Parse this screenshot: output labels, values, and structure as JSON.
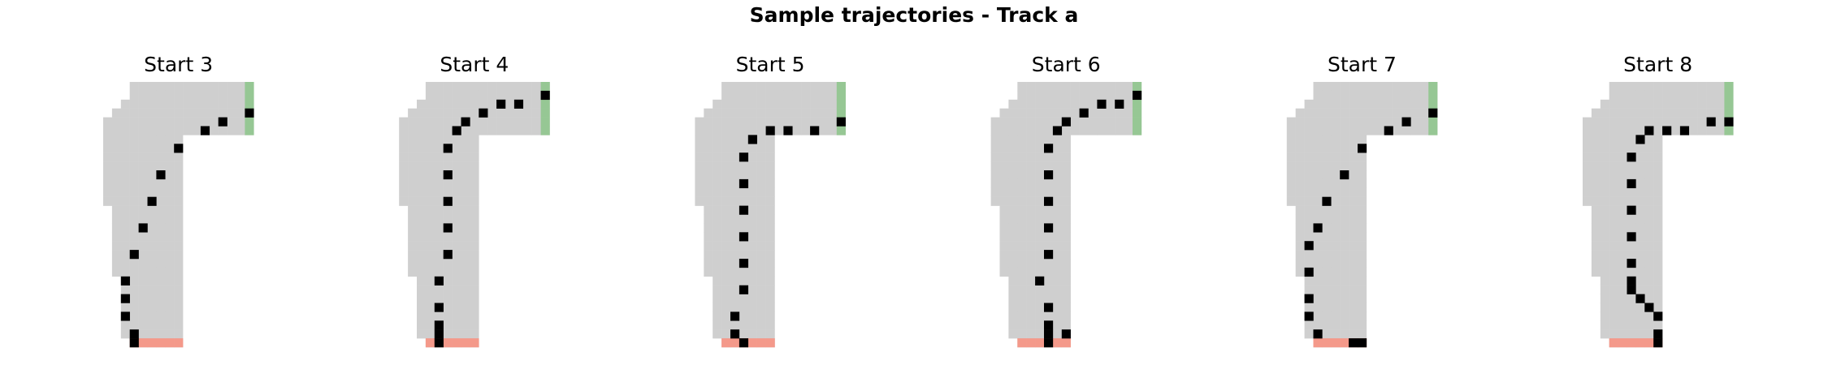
{
  "chart_data": {
    "type": "heatmap",
    "title": "Sample trajectories - Track a",
    "grid": false,
    "grid_size": {
      "rows": 30,
      "cols": 17
    },
    "colors": {
      "off_track": "#ffffff",
      "track": "#cfcfcf",
      "start_line": "#f4998a",
      "finish_line": "#96c794",
      "trajectory": "#000000"
    },
    "track_rows": [
      {
        "row": 0,
        "cols": [
          3,
          16
        ]
      },
      {
        "row": 1,
        "cols": [
          3,
          16
        ]
      },
      {
        "row": 2,
        "cols": [
          2,
          16
        ]
      },
      {
        "row": 3,
        "cols": [
          1,
          16
        ]
      },
      {
        "row": 4,
        "cols": [
          0,
          16
        ]
      },
      {
        "row": 5,
        "cols": [
          0,
          16
        ]
      },
      {
        "row": 6,
        "cols": [
          0,
          8
        ]
      },
      {
        "row": 7,
        "cols": [
          0,
          8
        ]
      },
      {
        "row": 8,
        "cols": [
          0,
          8
        ]
      },
      {
        "row": 9,
        "cols": [
          0,
          8
        ]
      },
      {
        "row": 10,
        "cols": [
          0,
          8
        ]
      },
      {
        "row": 11,
        "cols": [
          0,
          8
        ]
      },
      {
        "row": 12,
        "cols": [
          0,
          8
        ]
      },
      {
        "row": 13,
        "cols": [
          0,
          8
        ]
      },
      {
        "row": 14,
        "cols": [
          1,
          8
        ]
      },
      {
        "row": 15,
        "cols": [
          1,
          8
        ]
      },
      {
        "row": 16,
        "cols": [
          1,
          8
        ]
      },
      {
        "row": 17,
        "cols": [
          1,
          8
        ]
      },
      {
        "row": 18,
        "cols": [
          1,
          8
        ]
      },
      {
        "row": 19,
        "cols": [
          1,
          8
        ]
      },
      {
        "row": 20,
        "cols": [
          1,
          8
        ]
      },
      {
        "row": 21,
        "cols": [
          1,
          8
        ]
      },
      {
        "row": 22,
        "cols": [
          2,
          8
        ]
      },
      {
        "row": 23,
        "cols": [
          2,
          8
        ]
      },
      {
        "row": 24,
        "cols": [
          2,
          8
        ]
      },
      {
        "row": 25,
        "cols": [
          2,
          8
        ]
      },
      {
        "row": 26,
        "cols": [
          2,
          8
        ]
      },
      {
        "row": 27,
        "cols": [
          2,
          8
        ]
      },
      {
        "row": 28,
        "cols": [
          2,
          8
        ]
      },
      {
        "row": 29,
        "cols": [
          3,
          8
        ]
      }
    ],
    "start_cells": {
      "row": 29,
      "cols": [
        3,
        8
      ]
    },
    "finish_cells": {
      "col": 16,
      "rows": [
        0,
        5
      ]
    },
    "panels": [
      {
        "title": "Start 3",
        "trajectory": [
          [
            29,
            3
          ],
          [
            28,
            3
          ],
          [
            26,
            2
          ],
          [
            24,
            2
          ],
          [
            22,
            2
          ],
          [
            19,
            3
          ],
          [
            16,
            4
          ],
          [
            13,
            5
          ],
          [
            10,
            6
          ],
          [
            7,
            8
          ],
          [
            5,
            11
          ],
          [
            4,
            13
          ],
          [
            3,
            16
          ]
        ]
      },
      {
        "title": "Start 4",
        "trajectory": [
          [
            29,
            4
          ],
          [
            28,
            4
          ],
          [
            27,
            4
          ],
          [
            25,
            4
          ],
          [
            22,
            4
          ],
          [
            19,
            5
          ],
          [
            16,
            5
          ],
          [
            13,
            5
          ],
          [
            10,
            5
          ],
          [
            7,
            5
          ],
          [
            5,
            6
          ],
          [
            4,
            7
          ],
          [
            3,
            9
          ],
          [
            2,
            11
          ],
          [
            2,
            13
          ],
          [
            1,
            16
          ]
        ]
      },
      {
        "title": "Start 5",
        "trajectory": [
          [
            29,
            5
          ],
          [
            28,
            4
          ],
          [
            26,
            4
          ],
          [
            23,
            5
          ],
          [
            20,
            5
          ],
          [
            17,
            5
          ],
          [
            14,
            5
          ],
          [
            11,
            5
          ],
          [
            8,
            5
          ],
          [
            6,
            6
          ],
          [
            5,
            8
          ],
          [
            5,
            10
          ],
          [
            5,
            13
          ],
          [
            4,
            16
          ]
        ]
      },
      {
        "title": "Start 6",
        "trajectory": [
          [
            29,
            6
          ],
          [
            28,
            6
          ],
          [
            28,
            8
          ],
          [
            27,
            6
          ],
          [
            25,
            6
          ],
          [
            22,
            5
          ],
          [
            19,
            6
          ],
          [
            16,
            6
          ],
          [
            13,
            6
          ],
          [
            10,
            6
          ],
          [
            7,
            6
          ],
          [
            5,
            7
          ],
          [
            4,
            8
          ],
          [
            3,
            10
          ],
          [
            2,
            12
          ],
          [
            2,
            14
          ],
          [
            1,
            16
          ]
        ]
      },
      {
        "title": "Start 7",
        "trajectory": [
          [
            29,
            7
          ],
          [
            29,
            8
          ],
          [
            28,
            3
          ],
          [
            26,
            2
          ],
          [
            24,
            2
          ],
          [
            21,
            2
          ],
          [
            18,
            2
          ],
          [
            16,
            3
          ],
          [
            13,
            4
          ],
          [
            10,
            6
          ],
          [
            7,
            8
          ],
          [
            5,
            11
          ],
          [
            4,
            13
          ],
          [
            3,
            16
          ]
        ]
      },
      {
        "title": "Start 8",
        "trajectory": [
          [
            29,
            8
          ],
          [
            28,
            8
          ],
          [
            26,
            8
          ],
          [
            25,
            7
          ],
          [
            24,
            6
          ],
          [
            23,
            5
          ],
          [
            22,
            5
          ],
          [
            20,
            5
          ],
          [
            17,
            5
          ],
          [
            14,
            5
          ],
          [
            11,
            5
          ],
          [
            8,
            5
          ],
          [
            6,
            6
          ],
          [
            5,
            7
          ],
          [
            5,
            9
          ],
          [
            5,
            11
          ],
          [
            4,
            14
          ],
          [
            4,
            16
          ]
        ]
      }
    ]
  }
}
